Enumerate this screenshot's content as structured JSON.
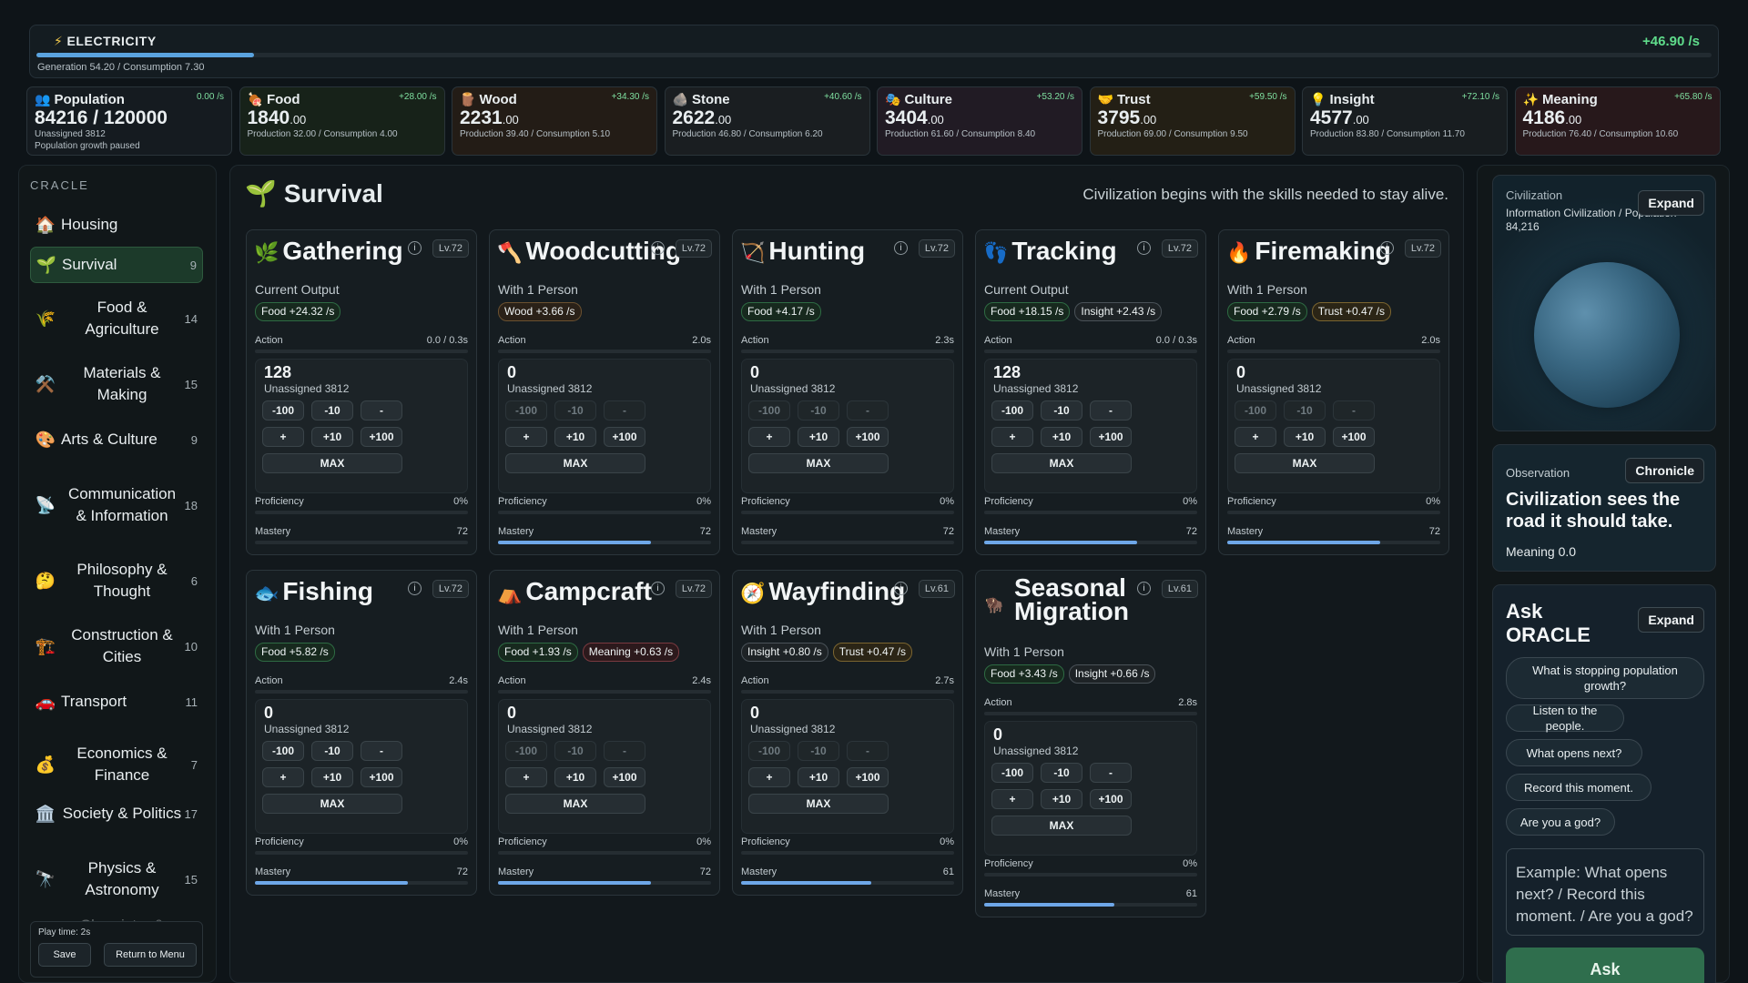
{
  "electricity": {
    "label": "ELECTRICITY",
    "icon": "⚡",
    "rate": "+46.90 /s",
    "sub": "Generation 54.20 / Consumption 7.30",
    "level": 0.13
  },
  "resources": [
    {
      "icon": "👥",
      "name": "Population",
      "rate": "0.00 /s",
      "value": "84216 / 120000",
      "dec": "",
      "sub1": "Unassigned 3812",
      "sub2": "Population growth paused",
      "bg": "#151b20"
    },
    {
      "icon": "🍖",
      "name": "Food",
      "rate": "+28.00 /s",
      "value": "1840",
      "dec": ".00",
      "sub1": "Production 32.00 / Consumption 4.00",
      "sub2": "",
      "bg": "#172219"
    },
    {
      "icon": "🪵",
      "name": "Wood",
      "rate": "+34.30 /s",
      "value": "2231",
      "dec": ".00",
      "sub1": "Production 39.40 / Consumption 5.10",
      "sub2": "",
      "bg": "#231c16"
    },
    {
      "icon": "🪨",
      "name": "Stone",
      "rate": "+40.60 /s",
      "value": "2622",
      "dec": ".00",
      "sub1": "Production 46.80 / Consumption 6.20",
      "sub2": "",
      "bg": "#1a1e21"
    },
    {
      "icon": "🎭",
      "name": "Culture",
      "rate": "+53.20 /s",
      "value": "3404",
      "dec": ".00",
      "sub1": "Production 61.60 / Consumption 8.40",
      "sub2": "",
      "bg": "#211b24"
    },
    {
      "icon": "🤝",
      "name": "Trust",
      "rate": "+59.50 /s",
      "value": "3795",
      "dec": ".00",
      "sub1": "Production 69.00 / Consumption 9.50",
      "sub2": "",
      "bg": "#231f15"
    },
    {
      "icon": "💡",
      "name": "Insight",
      "rate": "+72.10 /s",
      "value": "4577",
      "dec": ".00",
      "sub1": "Production 83.80 / Consumption 11.70",
      "sub2": "",
      "bg": "#181d20"
    },
    {
      "icon": "✨",
      "name": "Meaning",
      "rate": "+65.80 /s",
      "value": "4186",
      "dec": ".00",
      "sub1": "Production 76.40 / Consumption 10.60",
      "sub2": "",
      "bg": "#27181b"
    }
  ],
  "sidebar": {
    "header": "CRACLE",
    "items": [
      {
        "icon": "🏠",
        "label": "Housing",
        "count": ""
      },
      {
        "icon": "🌱",
        "label": "Survival",
        "count": "9"
      },
      {
        "icon": "🌾",
        "label": "Food & Agriculture",
        "count": "14"
      },
      {
        "icon": "⚒️",
        "label": "Materials & Making",
        "count": "15"
      },
      {
        "icon": "🎨",
        "label": "Arts & Culture",
        "count": "9"
      },
      {
        "icon": "📡",
        "label": "Communication & Information",
        "count": "18"
      },
      {
        "icon": "🤔",
        "label": "Philosophy & Thought",
        "count": "6"
      },
      {
        "icon": "🏗️",
        "label": "Construction & Cities",
        "count": "10"
      },
      {
        "icon": "🚗",
        "label": "Transport",
        "count": "11"
      },
      {
        "icon": "💰",
        "label": "Economics & Finance",
        "count": "7"
      },
      {
        "icon": "🏛️",
        "label": "Society & Politics",
        "count": "17"
      },
      {
        "icon": "🔭",
        "label": "Physics & Astronomy",
        "count": "15"
      },
      {
        "icon": "",
        "label": "Chemistry &",
        "count": ""
      }
    ],
    "play_time": "Play time: 2s",
    "save": "Save",
    "return": "Return to Menu"
  },
  "main": {
    "icon": "🌱",
    "title": "Survival",
    "desc": "Civilization begins with the skills needed to stay alive."
  },
  "controls": {
    "unassigned": "Unassigned 3812",
    "m100": "-100",
    "m10": "-10",
    "m1": "-",
    "p1": "+",
    "p10": "+10",
    "p100": "+100",
    "max": "MAX",
    "action": "Action",
    "proficiency": "Proficiency",
    "mastery": "Mastery",
    "info": "i"
  },
  "skills": [
    {
      "icon": "🌿",
      "name": "Gathering",
      "lv": "Lv.72",
      "output": "Current Output",
      "chips": [
        {
          "t": "Food +24.32 /s",
          "c": "food"
        }
      ],
      "action_time": "0.0 / 0.3s",
      "count": "128",
      "active": true,
      "prof": "0%",
      "mastery": "72",
      "mastery_level": 0.0
    },
    {
      "icon": "🪓",
      "name": "Woodcutting",
      "lv": "Lv.72",
      "output": "With 1 Person",
      "chips": [
        {
          "t": "Wood +3.66 /s",
          "c": "wood"
        }
      ],
      "action_time": "2.0s",
      "count": "0",
      "active": false,
      "prof": "0%",
      "mastery": "72",
      "mastery_level": 0.72
    },
    {
      "icon": "🏹",
      "name": "Hunting",
      "lv": "Lv.72",
      "output": "With 1 Person",
      "chips": [
        {
          "t": "Food +4.17 /s",
          "c": "food"
        }
      ],
      "action_time": "2.3s",
      "count": "0",
      "active": false,
      "prof": "0%",
      "mastery": "72",
      "mastery_level": 0.0
    },
    {
      "icon": "👣",
      "name": "Tracking",
      "lv": "Lv.72",
      "output": "Current Output",
      "chips": [
        {
          "t": "Food +18.15 /s",
          "c": "food"
        },
        {
          "t": "Insight +2.43 /s",
          "c": "insight"
        }
      ],
      "action_time": "0.0 / 0.3s",
      "count": "128",
      "active": true,
      "prof": "0%",
      "mastery": "72",
      "mastery_level": 0.72
    },
    {
      "icon": "🔥",
      "name": "Firemaking",
      "lv": "Lv.72",
      "output": "With 1 Person",
      "chips": [
        {
          "t": "Food +2.79 /s",
          "c": "food"
        },
        {
          "t": "Trust +0.47 /s",
          "c": "trust"
        }
      ],
      "action_time": "2.0s",
      "count": "0",
      "active": false,
      "prof": "0%",
      "mastery": "72",
      "mastery_level": 0.72
    },
    {
      "icon": "🐟",
      "name": "Fishing",
      "lv": "Lv.72",
      "output": "With 1 Person",
      "chips": [
        {
          "t": "Food +5.82 /s",
          "c": "food"
        }
      ],
      "action_time": "2.4s",
      "count": "0",
      "active": true,
      "prof": "0%",
      "mastery": "72",
      "mastery_level": 0.72
    },
    {
      "icon": "⛺",
      "name": "Campcraft",
      "lv": "Lv.72",
      "output": "With 1 Person",
      "chips": [
        {
          "t": "Food +1.93 /s",
          "c": "food"
        },
        {
          "t": "Meaning +0.63 /s",
          "c": "meaning"
        }
      ],
      "action_time": "2.4s",
      "count": "0",
      "active": false,
      "prof": "0%",
      "mastery": "72",
      "mastery_level": 0.72
    },
    {
      "icon": "🧭",
      "name": "Wayfinding",
      "lv": "Lv.61",
      "output": "With 1 Person",
      "chips": [
        {
          "t": "Insight +0.80 /s",
          "c": "insight"
        },
        {
          "t": "Trust +0.47 /s",
          "c": "trust"
        }
      ],
      "action_time": "2.7s",
      "count": "0",
      "active": false,
      "prof": "0%",
      "mastery": "61",
      "mastery_level": 0.61
    },
    {
      "icon": "🦬",
      "name": "Seasonal Migration",
      "lv": "Lv.61",
      "output": "With 1 Person",
      "chips": [
        {
          "t": "Food +3.43 /s",
          "c": "food"
        },
        {
          "t": "Insight +0.66 /s",
          "c": "insight"
        }
      ],
      "action_time": "2.8s",
      "count": "0",
      "active": true,
      "prof": "0%",
      "mastery": "61",
      "mastery_level": 0.61
    }
  ],
  "right": {
    "civ_title": "Civilization",
    "civ_sub": "Information Civilization / Population 84,216",
    "expand": "Expand",
    "obs_title": "Observation",
    "chronicle": "Chronicle",
    "obs_text": "Civilization sees the road it should take.",
    "meaning": "Meaning 0.0",
    "ask_title": "Ask ORACLE",
    "questions": [
      "What is stopping population growth?",
      "Listen to the people.",
      "What opens next?",
      "Record this moment.",
      "Are you a god?"
    ],
    "placeholder": "Example: What opens next? / Record this moment. / Are you a god?",
    "ask": "Ask"
  }
}
